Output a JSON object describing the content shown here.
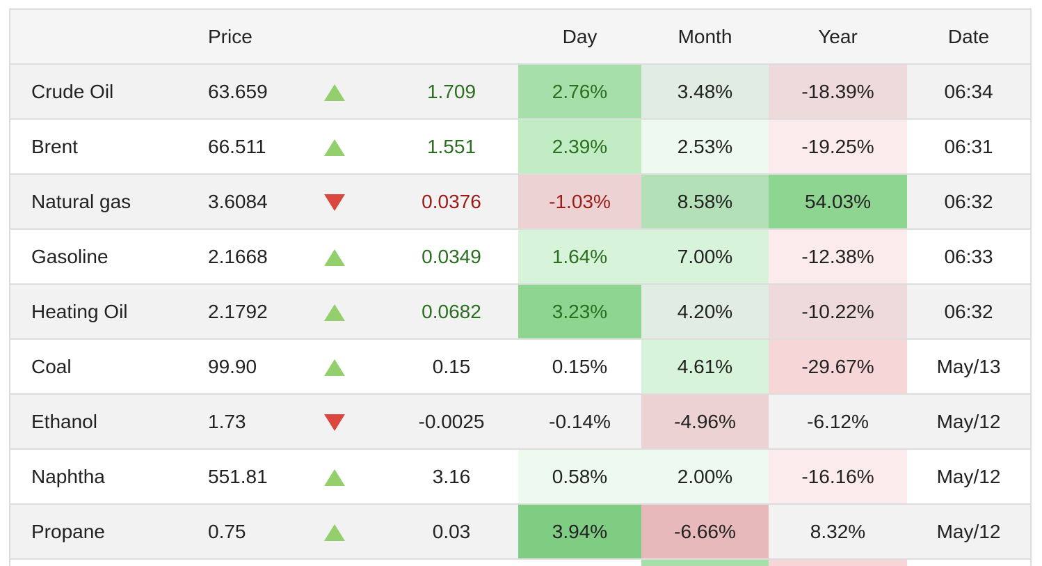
{
  "header": {
    "price": "Price",
    "day": "Day",
    "month": "Month",
    "year": "Year",
    "date": "Date"
  },
  "rows": [
    {
      "name": "Crude Oil",
      "price": "63.659",
      "direction": "up",
      "change": "1.709",
      "day": "2.76%",
      "month": "3.48%",
      "year": "-18.39%",
      "date": "06:34"
    },
    {
      "name": "Brent",
      "price": "66.511",
      "direction": "up",
      "change": "1.551",
      "day": "2.39%",
      "month": "2.53%",
      "year": "-19.25%",
      "date": "06:31"
    },
    {
      "name": "Natural gas",
      "price": "3.6084",
      "direction": "down",
      "change": "0.0376",
      "day": "-1.03%",
      "month": "8.58%",
      "year": "54.03%",
      "date": "06:32"
    },
    {
      "name": "Gasoline",
      "price": "2.1668",
      "direction": "up",
      "change": "0.0349",
      "day": "1.64%",
      "month": "7.00%",
      "year": "-12.38%",
      "date": "06:33"
    },
    {
      "name": "Heating Oil",
      "price": "2.1792",
      "direction": "up",
      "change": "0.0682",
      "day": "3.23%",
      "month": "4.20%",
      "year": "-10.22%",
      "date": "06:32"
    },
    {
      "name": "Coal",
      "price": "99.90",
      "direction": "up",
      "change": "0.15",
      "day": "0.15%",
      "month": "4.61%",
      "year": "-29.67%",
      "date": "May/13"
    },
    {
      "name": "Ethanol",
      "price": "1.73",
      "direction": "down",
      "change": "-0.0025",
      "day": "-0.14%",
      "month": "-4.96%",
      "year": "-6.12%",
      "date": "May/12"
    },
    {
      "name": "Naphtha",
      "price": "551.81",
      "direction": "up",
      "change": "3.16",
      "day": "0.58%",
      "month": "2.00%",
      "year": "-16.16%",
      "date": "May/12"
    },
    {
      "name": "Propane",
      "price": "0.75",
      "direction": "up",
      "change": "0.03",
      "day": "3.94%",
      "month": "-6.66%",
      "year": "8.32%",
      "date": "May/12"
    }
  ],
  "colors": {
    "up_arrow": "#93cf6d",
    "down_arrow": "#d9473e",
    "up_text": "#2a6e1f",
    "down_text": "#9b1c17"
  }
}
